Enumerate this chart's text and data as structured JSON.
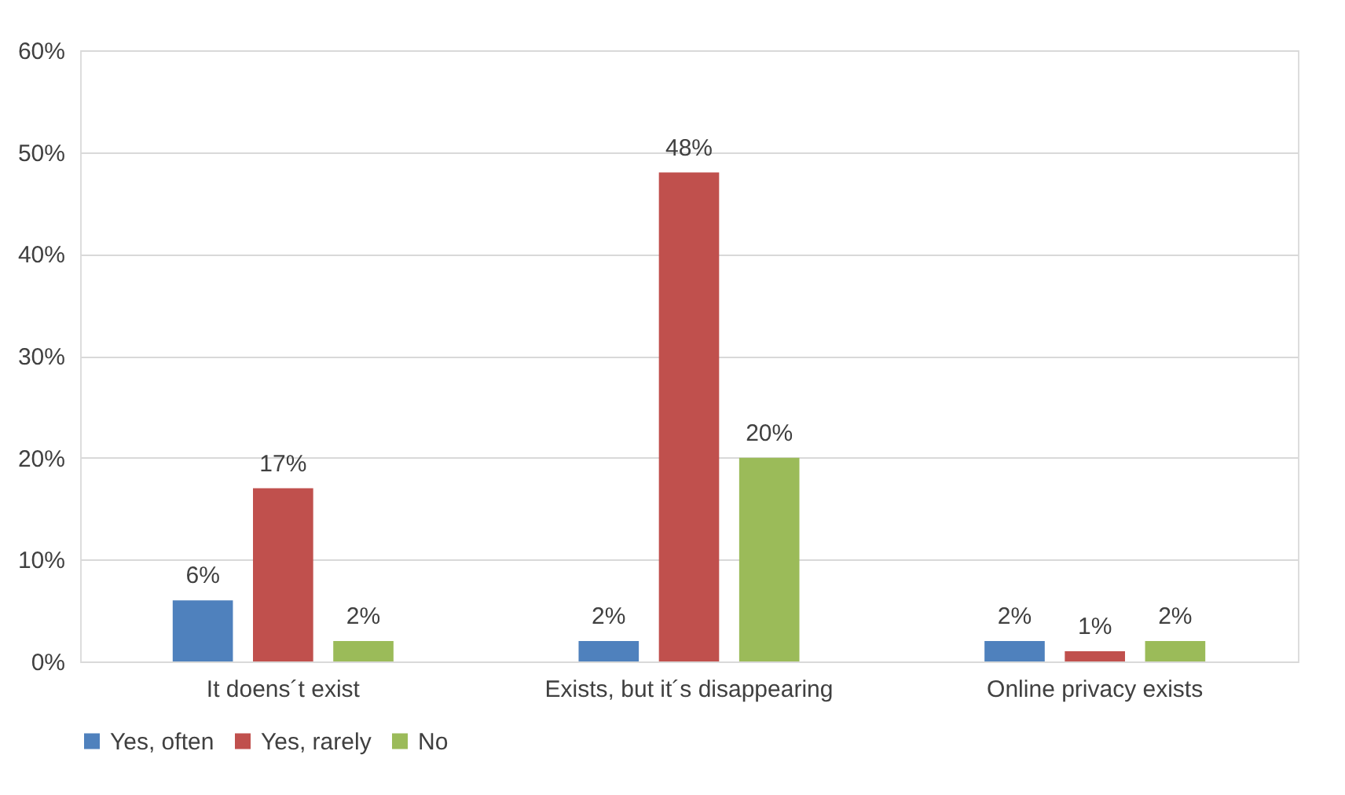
{
  "chart_data": {
    "type": "bar",
    "categories": [
      "It doens´t exist",
      "Exists, but it´s disappearing",
      "Online privacy exists"
    ],
    "series": [
      {
        "name": "Yes, often",
        "color": "#4f81bd",
        "values": [
          6,
          2,
          2
        ],
        "value_labels": [
          "6%",
          "2%",
          "2%"
        ]
      },
      {
        "name": "Yes, rarely",
        "color": "#c0504d",
        "values": [
          17,
          48,
          1
        ],
        "value_labels": [
          "17%",
          "48%",
          "1%"
        ]
      },
      {
        "name": "No",
        "color": "#9bbb59",
        "values": [
          2,
          20,
          2
        ],
        "value_labels": [
          "2%",
          "20%",
          "2%"
        ]
      }
    ],
    "ylim": [
      0,
      60
    ],
    "yticks": [
      {
        "value": 0,
        "label": "0%"
      },
      {
        "value": 10,
        "label": "10%"
      },
      {
        "value": 20,
        "label": "20%"
      },
      {
        "value": 30,
        "label": "30%"
      },
      {
        "value": 40,
        "label": "40%"
      },
      {
        "value": 50,
        "label": "50%"
      },
      {
        "value": 60,
        "label": "60%"
      }
    ],
    "grid": "y",
    "legend": "bottom"
  }
}
